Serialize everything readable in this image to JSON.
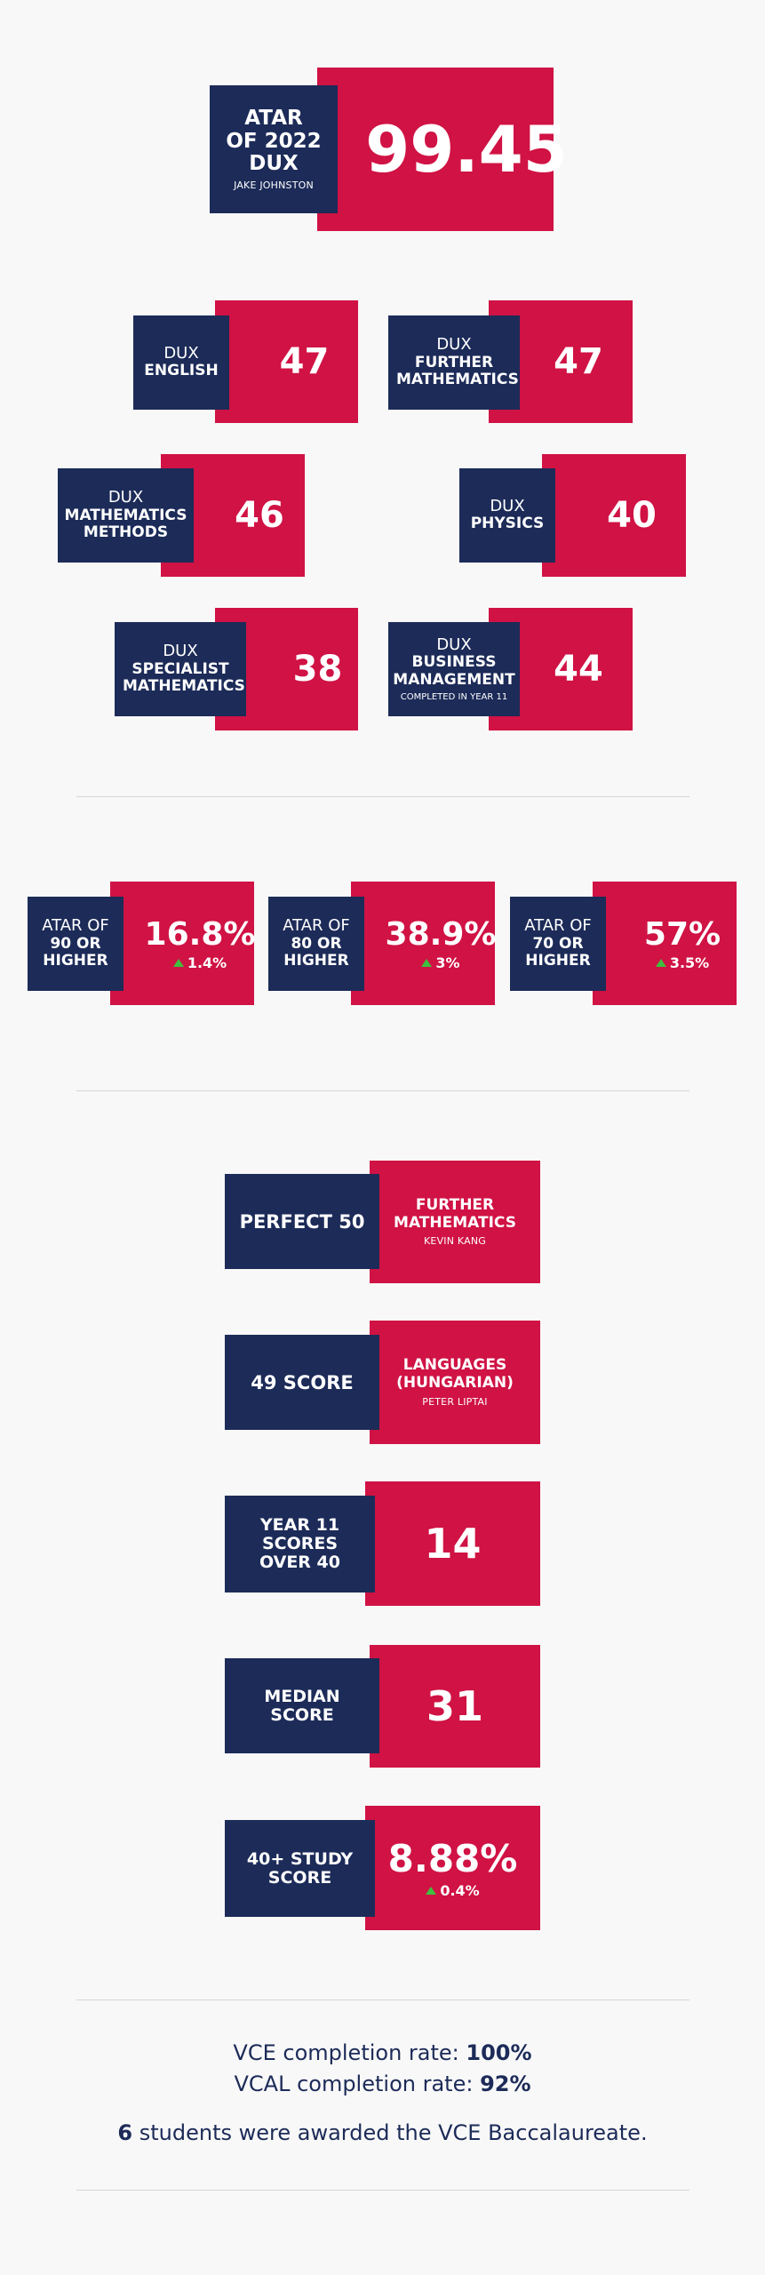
{
  "dux_main": {
    "line1": "ATAR",
    "line2": "OF 2022",
    "line3": "DUX",
    "name": "JAKE JOHNSTON",
    "value": "99.45"
  },
  "subjects": [
    {
      "pre": "DUX",
      "title": "ENGLISH",
      "value": "47"
    },
    {
      "pre": "DUX",
      "title": "FURTHER MATHEMATICS",
      "value": "47"
    },
    {
      "pre": "DUX",
      "title": "MATHEMATICS METHODS",
      "value": "46"
    },
    {
      "pre": "DUX",
      "title": "PHYSICS",
      "value": "40"
    },
    {
      "pre": "DUX",
      "title": "SPECIALIST MATHEMATICS",
      "value": "38"
    },
    {
      "pre": "DUX",
      "title": "BUSINESS MANAGEMENT",
      "note": "COMPLETED IN YEAR 11",
      "value": "44"
    }
  ],
  "atar_bands": [
    {
      "pre": "ATAR OF",
      "title": "90 OR HIGHER",
      "value": "16.8%",
      "delta": "1.4%"
    },
    {
      "pre": "ATAR OF",
      "title": "80 OR HIGHER",
      "value": "38.9%",
      "delta": "3%"
    },
    {
      "pre": "ATAR OF",
      "title": "70 OR HIGHER",
      "value": "57%",
      "delta": "3.5%"
    }
  ],
  "highlights": [
    {
      "label": "PERFECT 50",
      "title": "FURTHER MATHEMATICS",
      "name": "KEVIN KANG"
    },
    {
      "label": "49 SCORE",
      "title": "LANGUAGES (HUNGARIAN)",
      "name": "PETER LIPTAI"
    },
    {
      "label": "YEAR 11 SCORES OVER 40",
      "value": "14"
    },
    {
      "label": "MEDIAN SCORE",
      "value": "31"
    },
    {
      "label": "40+ STUDY SCORE",
      "value": "8.88%",
      "delta": "0.4%"
    }
  ],
  "footer": {
    "vce_label": "VCE completion rate:",
    "vce_value": "100%",
    "vcal_label": "VCAL completion rate:",
    "vcal_value": "92%",
    "bacc_count": "6",
    "bacc_text": "students were awarded the VCE Baccalaureate."
  },
  "colors": {
    "red": "#d01244",
    "navy": "#1c2b58",
    "arrow": "#3fbf3f",
    "background": "#f8f8f8"
  }
}
